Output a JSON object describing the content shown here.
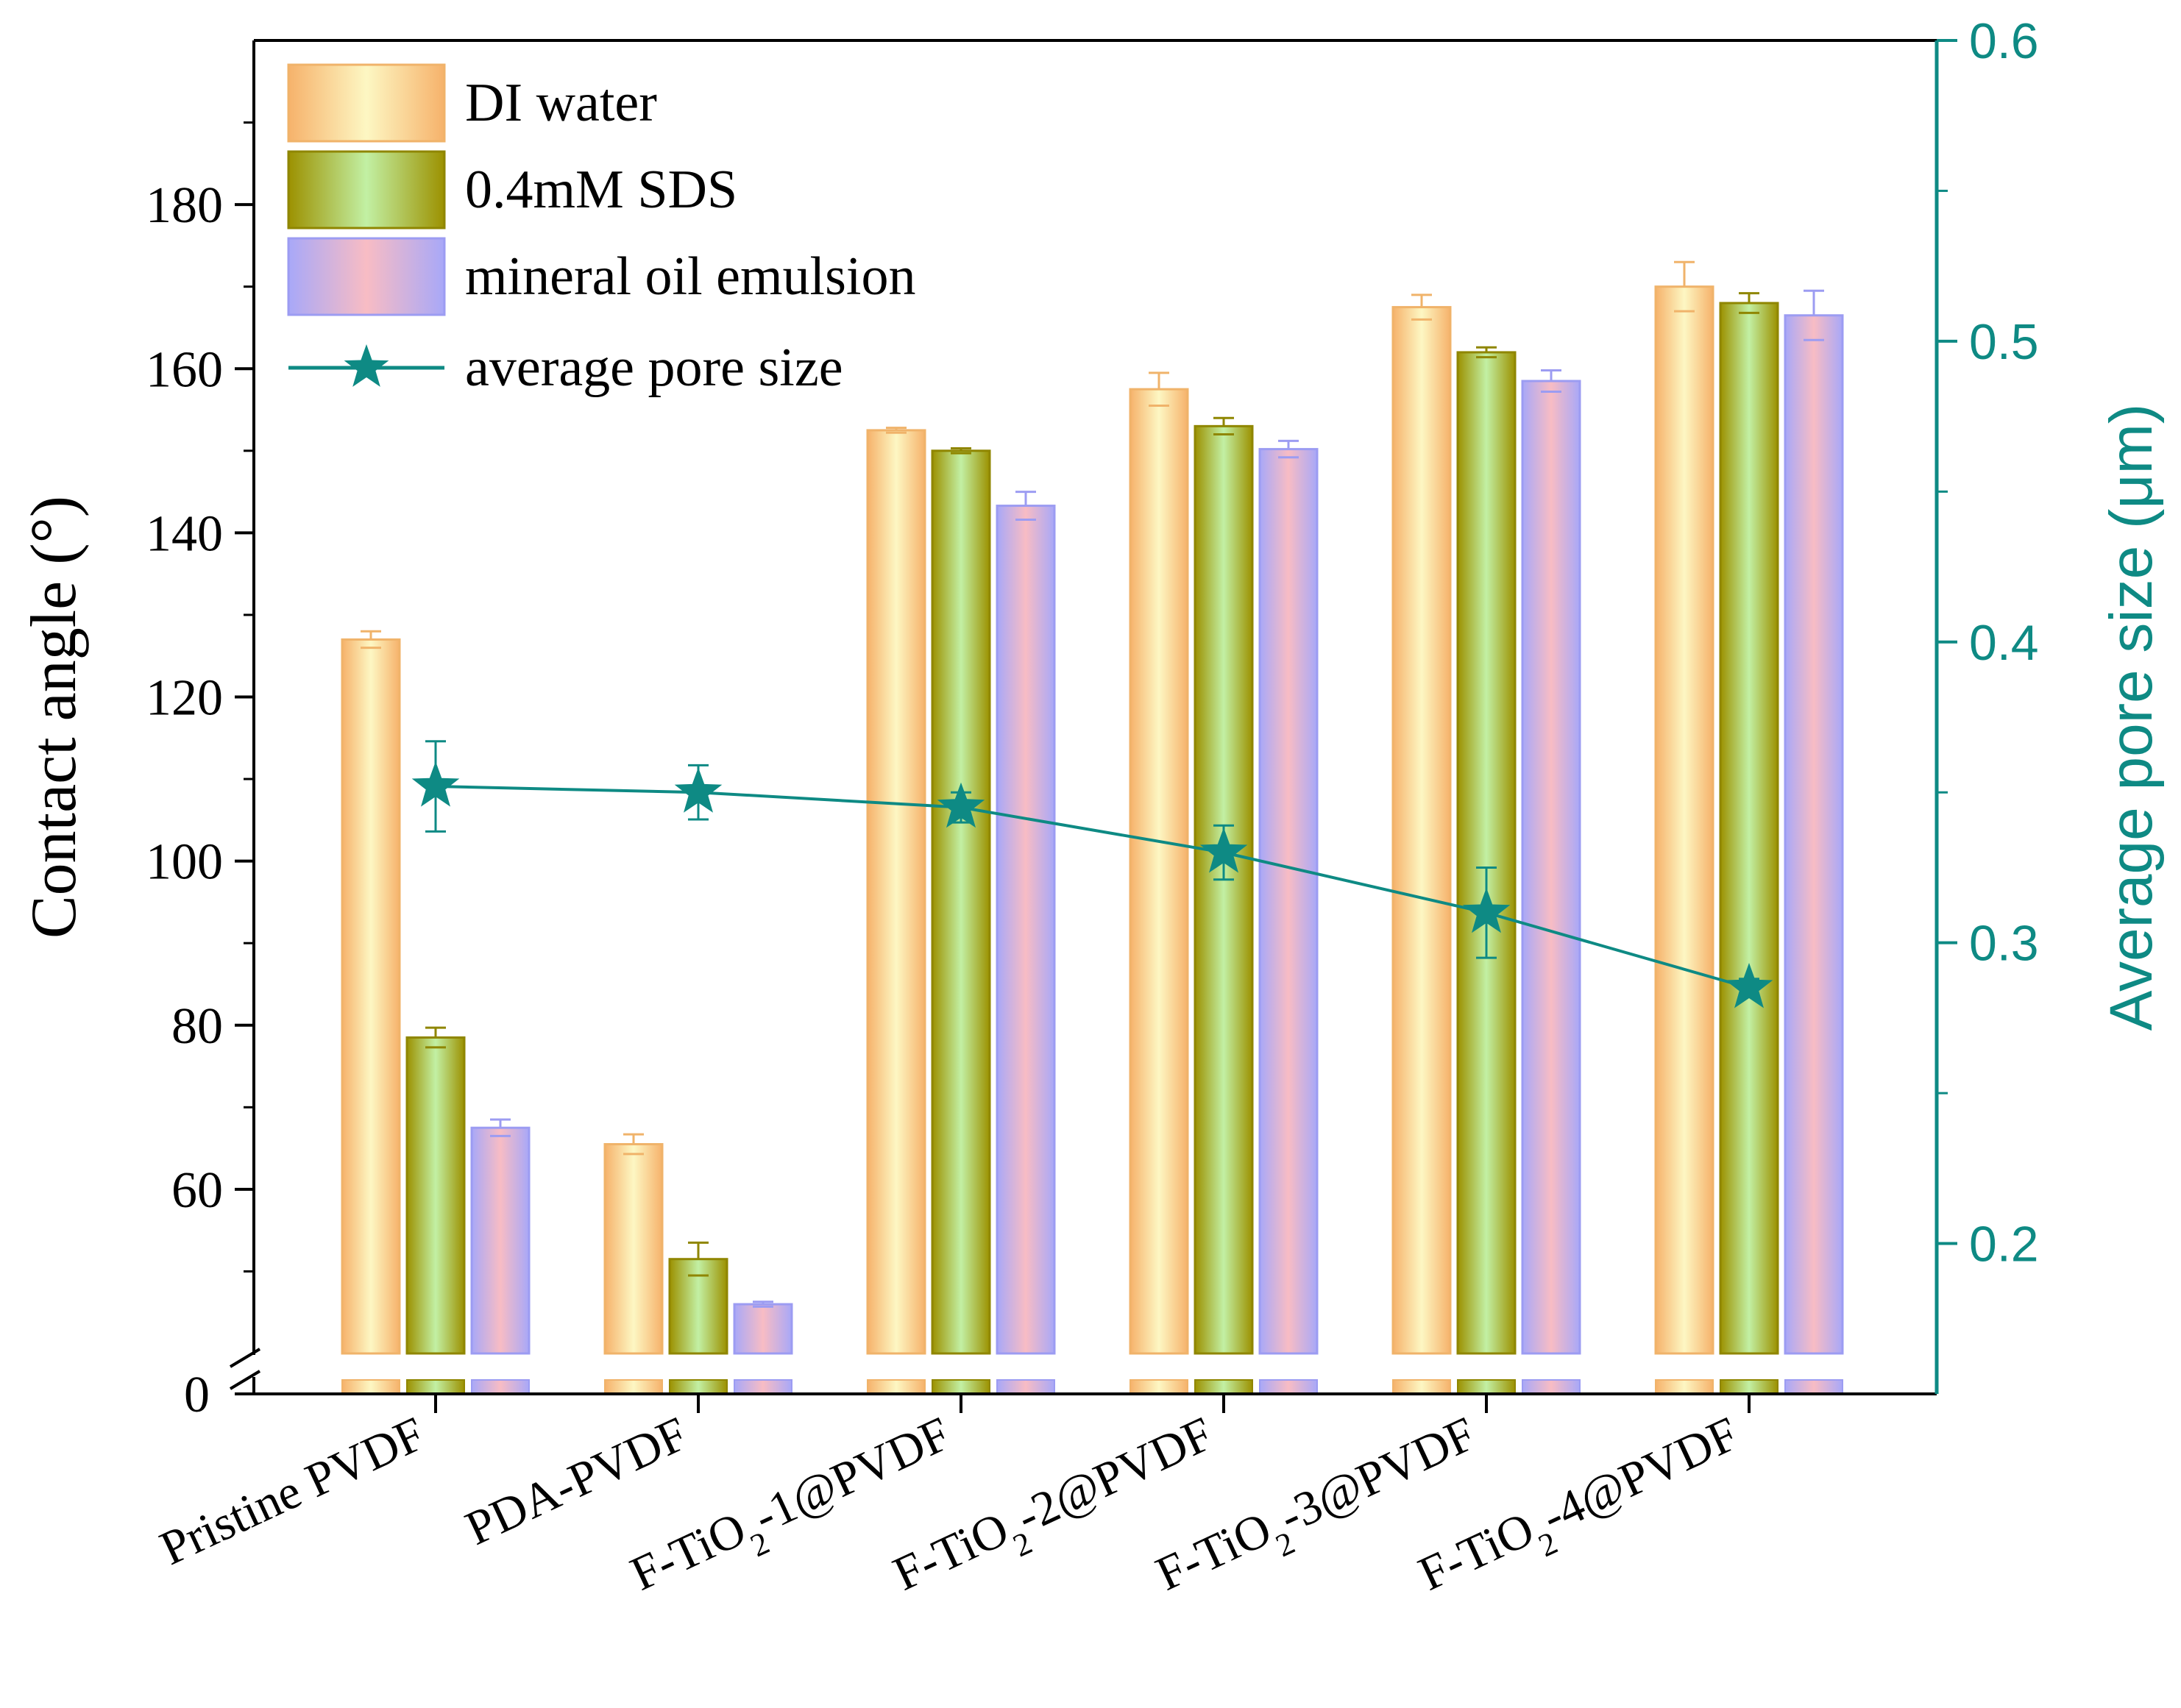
{
  "chart_data": {
    "type": "bar",
    "categories": [
      "Pristine PVDF",
      "PDA-PVDF",
      "F-TiO2-1@PVDF",
      "F-TiO2-2@PVDF",
      "F-TiO2-3@PVDF",
      "F-TiO2-4@PVDF"
    ],
    "category_labels": [
      {
        "pre": "Pristine PVDF",
        "sub": "",
        "post": ""
      },
      {
        "pre": "PDA-PVDF",
        "sub": "",
        "post": ""
      },
      {
        "pre": "F-TiO",
        "sub": "2",
        "post": "-1@PVDF"
      },
      {
        "pre": "F-TiO",
        "sub": "2",
        "post": "-2@PVDF"
      },
      {
        "pre": "F-TiO",
        "sub": "2",
        "post": "-3@PVDF"
      },
      {
        "pre": "F-TiO",
        "sub": "2",
        "post": "-4@PVDF"
      }
    ],
    "series": [
      {
        "name": "DI water",
        "axis": "left",
        "values": [
          127,
          65.5,
          152.5,
          157.5,
          167.5,
          170
        ],
        "errors": [
          1,
          1.2,
          0.3,
          2,
          1.5,
          3
        ],
        "colors": [
          "#f6b26b",
          "#fdf7c3"
        ],
        "edge": "#f0b36a"
      },
      {
        "name": "0.4mM SDS",
        "axis": "left",
        "values": [
          78.5,
          51.5,
          150,
          153,
          162,
          168
        ],
        "errors": [
          1.2,
          2,
          0.3,
          1,
          0.6,
          1.2
        ],
        "colors": [
          "#9c9100",
          "#c2f0a4"
        ],
        "edge": "#8f8600"
      },
      {
        "name": "mineral oil emulsion",
        "axis": "left",
        "values": [
          67.5,
          46,
          143.3,
          150.2,
          158.5,
          166.5
        ],
        "errors": [
          1,
          0.3,
          1.7,
          1,
          1.3,
          3
        ],
        "colors": [
          "#a8a8f8",
          "#f8bcc4"
        ],
        "edge": "#9c9cf2"
      },
      {
        "name": "average pore size",
        "axis": "right",
        "type": "line",
        "values": [
          0.352,
          0.35,
          0.345,
          0.33,
          0.31,
          0.285
        ],
        "errors": [
          0.015,
          0.009,
          0.005,
          0.009,
          0.015,
          0.003
        ],
        "color": "#0e8a84"
      }
    ],
    "ylabel": "Contact angle (°)",
    "y2label": "Average pore size (μm)",
    "ylim": [
      40,
      200
    ],
    "yticks": [
      60,
      80,
      100,
      120,
      140,
      160,
      180
    ],
    "y_break_label": "0",
    "y2lim": [
      0.15,
      0.6
    ],
    "y2ticks": [
      0.2,
      0.3,
      0.4,
      0.5,
      0.6
    ],
    "y2tick_labels": [
      "0.2",
      "0.3",
      "0.4",
      "0.5",
      "0.6"
    ],
    "legend_position": "top-left",
    "accent_color": "#0e8a84",
    "axis_color": "#000000"
  }
}
